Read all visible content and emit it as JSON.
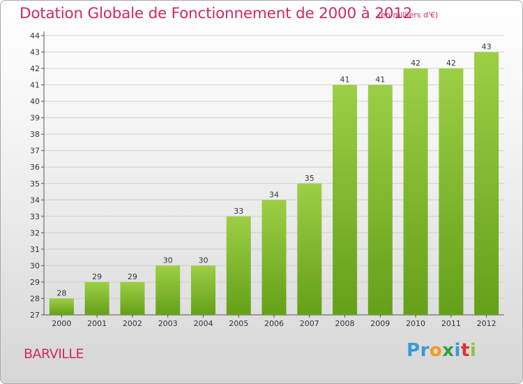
{
  "title": "Dotation Globale de Fonctionnement de 2000 à 2012",
  "unit_label": "(en milliers d'€)",
  "commune": "BARVILLE",
  "logo": {
    "text": "Proxiti",
    "letters": [
      {
        "char": "P",
        "color": "#3a9ad9"
      },
      {
        "char": "r",
        "color": "#3a9ad9"
      },
      {
        "char": "o",
        "color": "#f39a1e"
      },
      {
        "char": "x",
        "color": "#2f9e44"
      },
      {
        "char": "i",
        "color": "#3a9ad9"
      },
      {
        "char": "t",
        "color": "#e7312b"
      },
      {
        "char": "i",
        "color": "#8cc63f"
      }
    ]
  },
  "colors": {
    "title": "#d12861",
    "bar_top": "#9ccf45",
    "bar_bottom": "#64a018",
    "grid": "#cfcfcf",
    "text": "#333333"
  },
  "chart_data": {
    "type": "bar",
    "title": "Dotation Globale de Fonctionnement de 2000 à 2012",
    "categories": [
      "2000",
      "2001",
      "2002",
      "2003",
      "2004",
      "2005",
      "2006",
      "2007",
      "2008",
      "2009",
      "2010",
      "2011",
      "2012"
    ],
    "values": [
      28,
      29,
      29,
      30,
      30,
      33,
      34,
      35,
      41,
      41,
      42,
      42,
      43
    ],
    "ylim": [
      27,
      44
    ],
    "yticks": [
      27,
      28,
      29,
      30,
      31,
      32,
      33,
      34,
      35,
      36,
      37,
      38,
      39,
      40,
      41,
      42,
      43,
      44
    ],
    "grid": true,
    "xlabel": "",
    "ylabel": ""
  }
}
